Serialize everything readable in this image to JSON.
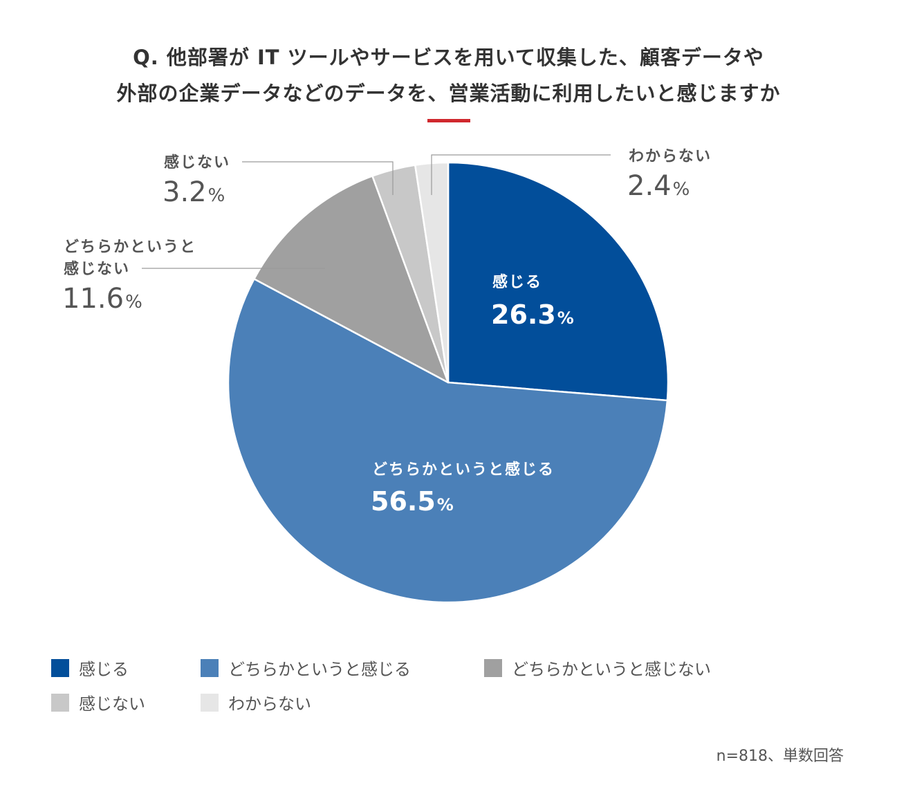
{
  "chart_data": {
    "type": "pie",
    "title_lines": [
      "Q. 他部署が IT ツールやサービスを用いて収集した、顧客データや",
      "外部の企業データなどのデータを、営業活動に利用したいと感じますか"
    ],
    "accent_color": "#d0282e",
    "unit": "%",
    "slices": [
      {
        "label": "感じる",
        "label_lines": [
          "感じる"
        ],
        "value": 26.3,
        "display": "26.3",
        "color": "#024e9a",
        "label_position": "inside",
        "text_color": "#ffffff"
      },
      {
        "label": "どちらかというと感じる",
        "label_lines": [
          "どちらかというと感じる"
        ],
        "value": 56.5,
        "display": "56.5",
        "color": "#4b80b8",
        "label_position": "inside",
        "text_color": "#ffffff"
      },
      {
        "label": "どちらかというと感じない",
        "label_lines": [
          "どちらかというと",
          "感じない"
        ],
        "value": 11.6,
        "display": "11.6",
        "color": "#a0a0a0",
        "label_position": "outside-left",
        "text_color": "#555555"
      },
      {
        "label": "感じない",
        "label_lines": [
          "感じない"
        ],
        "value": 3.2,
        "display": "3.2",
        "color": "#c8c8c8",
        "label_position": "outside-left",
        "text_color": "#555555"
      },
      {
        "label": "わからない",
        "label_lines": [
          "わからない"
        ],
        "value": 2.4,
        "display": "2.4",
        "color": "#e6e6e6",
        "label_position": "outside-right",
        "text_color": "#555555"
      }
    ],
    "legend": {
      "placement": "bottom",
      "items": [
        "感じる",
        "どちらかというと感じる",
        "どちらかというと感じない",
        "感じない",
        "わからない"
      ]
    },
    "note": "n=818、単数回答"
  }
}
